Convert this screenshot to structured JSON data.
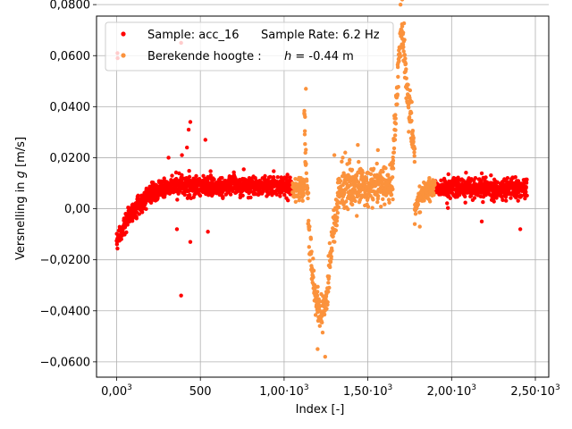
{
  "chart_data": {
    "type": "scatter",
    "xlabel": "Index [-]",
    "ylabel_prefix": "Versnelling in ",
    "ylabel_var": "g",
    "ylabel_suffix": " [m/s]",
    "xlim": [
      -120,
      2580
    ],
    "ylim": [
      -0.066,
      0.0755
    ],
    "grid": true,
    "legend_position": "upper-left",
    "x_ticks": [
      {
        "value": 0,
        "mantissa": "0,00",
        "power": "3"
      },
      {
        "value": 500,
        "mantissa": "500",
        "power": ""
      },
      {
        "value": 1000,
        "mantissa": "1,00·10",
        "power": "3"
      },
      {
        "value": 1500,
        "mantissa": "1,50·10",
        "power": "3"
      },
      {
        "value": 2000,
        "mantissa": "2,00·10",
        "power": "3"
      },
      {
        "value": 2500,
        "mantissa": "2,50·10",
        "power": "3"
      }
    ],
    "y_ticks": [
      {
        "value": 0.08,
        "label": "0,0800"
      },
      {
        "value": 0.06,
        "label": "0,0600"
      },
      {
        "value": 0.04,
        "label": "0,0400"
      },
      {
        "value": 0.02,
        "label": "0,0200"
      },
      {
        "value": 0.0,
        "label": "0,00"
      },
      {
        "value": -0.02,
        "label": "−0,0200"
      },
      {
        "value": -0.04,
        "label": "−0,0400"
      },
      {
        "value": -0.06,
        "label": "−0,0600"
      }
    ],
    "series": [
      {
        "name": "Sample: acc_16",
        "legend_extra": "Sample Rate: 6.2 Hz",
        "color": "#ff0000",
        "segments": [
          {
            "x": [
              0,
              1050
            ],
            "trend": [
              [
                0,
                -0.012
              ],
              [
                80,
                -0.002
              ],
              [
                200,
                0.006
              ],
              [
                320,
                0.009
              ],
              [
                1050,
                0.009
              ]
            ],
            "noise": 0.0035
          },
          {
            "x": [
              1900,
              2450
            ],
            "trend": [
              [
                1900,
                0.008
              ],
              [
                2450,
                0.008
              ]
            ],
            "noise": 0.0035
          }
        ],
        "outliers": [
          [
            5,
            0.061
          ],
          [
            6,
            0.059
          ],
          [
            385,
            -0.034
          ],
          [
            440,
            0.034
          ],
          [
            430,
            0.031
          ],
          [
            385,
            0.065
          ],
          [
            390,
            0.021
          ],
          [
            530,
            0.027
          ],
          [
            360,
            -0.008
          ],
          [
            545,
            -0.009
          ],
          [
            440,
            -0.013
          ],
          [
            2410,
            -0.008
          ],
          [
            2180,
            -0.005
          ],
          [
            310,
            0.02
          ],
          [
            420,
            0.024
          ]
        ]
      },
      {
        "name": "Berekende hoogte :",
        "legend_extra_var": "h",
        "legend_extra": " = -0.44 m",
        "color": "#fb923c",
        "segments": [
          {
            "x": [
              1050,
              1120
            ],
            "trend": [
              [
                1050,
                0.008
              ],
              [
                1120,
                0.008
              ]
            ],
            "noise": 0.004
          },
          {
            "x": [
              1120,
              1180
            ],
            "trend": [
              [
                1120,
                0.035
              ],
              [
                1135,
                0.01
              ],
              [
                1150,
                -0.01
              ],
              [
                1165,
                -0.02
              ],
              [
                1180,
                -0.03
              ]
            ],
            "noise": 0.006
          },
          {
            "x": [
              1180,
              1260
            ],
            "trend": [
              [
                1180,
                -0.032
              ],
              [
                1220,
                -0.042
              ],
              [
                1260,
                -0.035
              ]
            ],
            "noise": 0.006
          },
          {
            "x": [
              1260,
              1320
            ],
            "trend": [
              [
                1260,
                -0.03
              ],
              [
                1290,
                -0.01
              ],
              [
                1320,
                0.0
              ]
            ],
            "noise": 0.006
          },
          {
            "x": [
              1320,
              1650
            ],
            "trend": [
              [
                1320,
                0.008
              ],
              [
                1650,
                0.01
              ]
            ],
            "noise": 0.007
          },
          {
            "x": [
              1650,
              1720
            ],
            "trend": [
              [
                1650,
                0.02
              ],
              [
                1680,
                0.05
              ],
              [
                1700,
                0.07
              ],
              [
                1720,
                0.06
              ]
            ],
            "noise": 0.008
          },
          {
            "x": [
              1720,
              1780
            ],
            "trend": [
              [
                1720,
                0.055
              ],
              [
                1750,
                0.04
              ],
              [
                1780,
                0.02
              ]
            ],
            "noise": 0.007
          },
          {
            "x": [
              1780,
              1900
            ],
            "trend": [
              [
                1780,
                0.0
              ],
              [
                1820,
                0.006
              ],
              [
                1900,
                0.008
              ]
            ],
            "noise": 0.004
          }
        ],
        "outliers": [
          [
            1130,
            0.047
          ],
          [
            1125,
            0.036
          ],
          [
            1245,
            -0.058
          ],
          [
            1200,
            -0.055
          ],
          [
            1365,
            0.022
          ],
          [
            1440,
            0.025
          ],
          [
            1780,
            -0.006
          ],
          [
            1705,
            0.082
          ],
          [
            1695,
            0.08
          ],
          [
            1810,
            -0.007
          ],
          [
            1300,
            0.021
          ],
          [
            1560,
            0.023
          ]
        ]
      }
    ]
  }
}
